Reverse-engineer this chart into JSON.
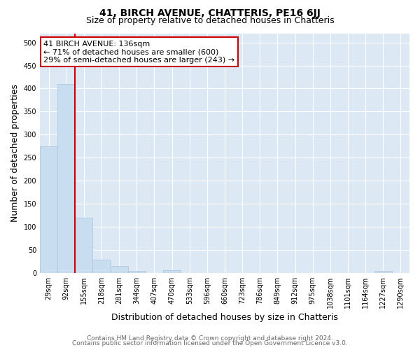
{
  "title": "41, BIRCH AVENUE, CHATTERIS, PE16 6JJ",
  "subtitle": "Size of property relative to detached houses in Chatteris",
  "xlabel": "Distribution of detached houses by size in Chatteris",
  "ylabel": "Number of detached properties",
  "footnote1": "Contains HM Land Registry data © Crown copyright and database right 2024.",
  "footnote2": "Contains public sector information licensed under the Open Government Licence v3.0.",
  "categories": [
    "29sqm",
    "92sqm",
    "155sqm",
    "218sqm",
    "281sqm",
    "344sqm",
    "407sqm",
    "470sqm",
    "533sqm",
    "596sqm",
    "660sqm",
    "723sqm",
    "786sqm",
    "849sqm",
    "912sqm",
    "975sqm",
    "1038sqm",
    "1101sqm",
    "1164sqm",
    "1227sqm",
    "1290sqm"
  ],
  "values": [
    275,
    410,
    120,
    28,
    15,
    4,
    0,
    5,
    0,
    0,
    0,
    0,
    0,
    0,
    0,
    0,
    0,
    0,
    0,
    4,
    0
  ],
  "bar_color": "#c9ddf0",
  "bar_edge_color": "#a8c4dc",
  "highlight_line_color": "#cc0000",
  "highlight_bar_index": 1,
  "annotation_text": "41 BIRCH AVENUE: 136sqm\n← 71% of detached houses are smaller (600)\n29% of semi-detached houses are larger (243) →",
  "annotation_box_color": "#cc0000",
  "ylim": [
    0,
    520
  ],
  "yticks": [
    0,
    50,
    100,
    150,
    200,
    250,
    300,
    350,
    400,
    450,
    500
  ],
  "background_color": "#dde8f5",
  "grid_color": "#ffffff",
  "title_fontsize": 10,
  "subtitle_fontsize": 9,
  "axis_label_fontsize": 9,
  "tick_fontsize": 7,
  "annotation_fontsize": 8,
  "footnote_fontsize": 6.5
}
